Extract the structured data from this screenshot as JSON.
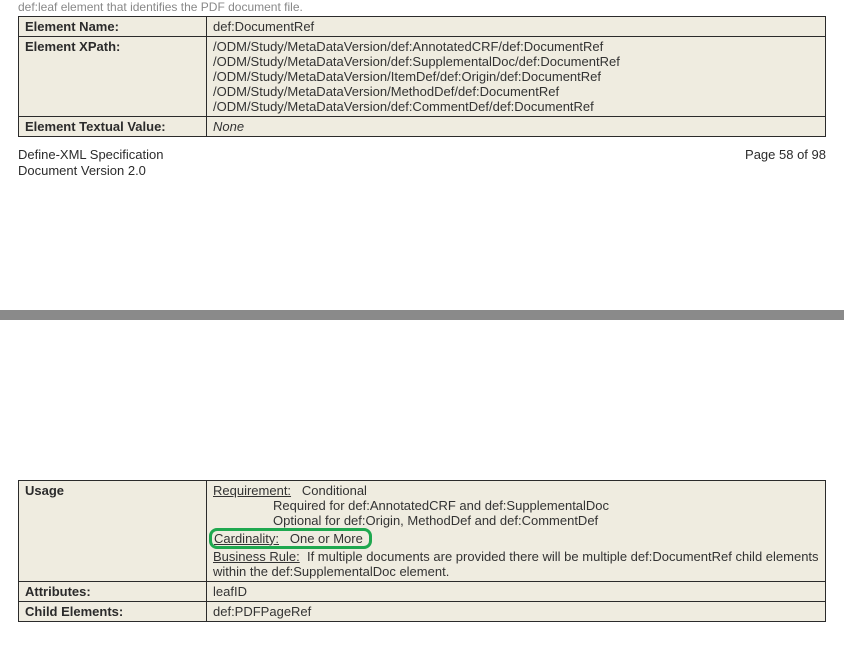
{
  "table1": {
    "truncated_caption": "def:leaf element that identifies the PDF document file.",
    "rows": {
      "elementName": {
        "label": "Element Name:",
        "value": "def:DocumentRef"
      },
      "elementXPath": {
        "label": "Element XPath:",
        "values": [
          "/ODM/Study/MetaDataVersion/def:AnnotatedCRF/def:DocumentRef",
          "/ODM/Study/MetaDataVersion/def:SupplementalDoc/def:DocumentRef",
          "/ODM/Study/MetaDataVersion/ItemDef/def:Origin/def:DocumentRef",
          "/ODM/Study/MetaDataVersion/MethodDef/def:DocumentRef",
          "/ODM/Study/MetaDataVersion/def:CommentDef/def:DocumentRef"
        ]
      },
      "elementTextual": {
        "label": "Element Textual Value:",
        "value": "None"
      }
    }
  },
  "footer": {
    "specTitle": "Define-XML Specification",
    "docVersion": "Document Version 2.0",
    "pageInfo": "Page 58 of 98"
  },
  "table2": {
    "usage": {
      "label": "Usage",
      "requirement_label": "Requirement:",
      "requirement_value": "Conditional",
      "req_line1": "Required for def:AnnotatedCRF and def:SupplementalDoc",
      "req_line2": "Optional for def:Origin, MethodDef and def:CommentDef",
      "cardinality_label": "Cardinality:",
      "cardinality_value": "One or More",
      "businessrule_label": "Business Rule:",
      "businessrule_value": "If multiple documents are provided there will be multiple def:DocumentRef child elements within the def:SupplementalDoc element."
    },
    "attributes": {
      "label": "Attributes:",
      "value": "leafID"
    },
    "childElements": {
      "label": "Child Elements:",
      "value": "def:PDFPageRef"
    }
  }
}
